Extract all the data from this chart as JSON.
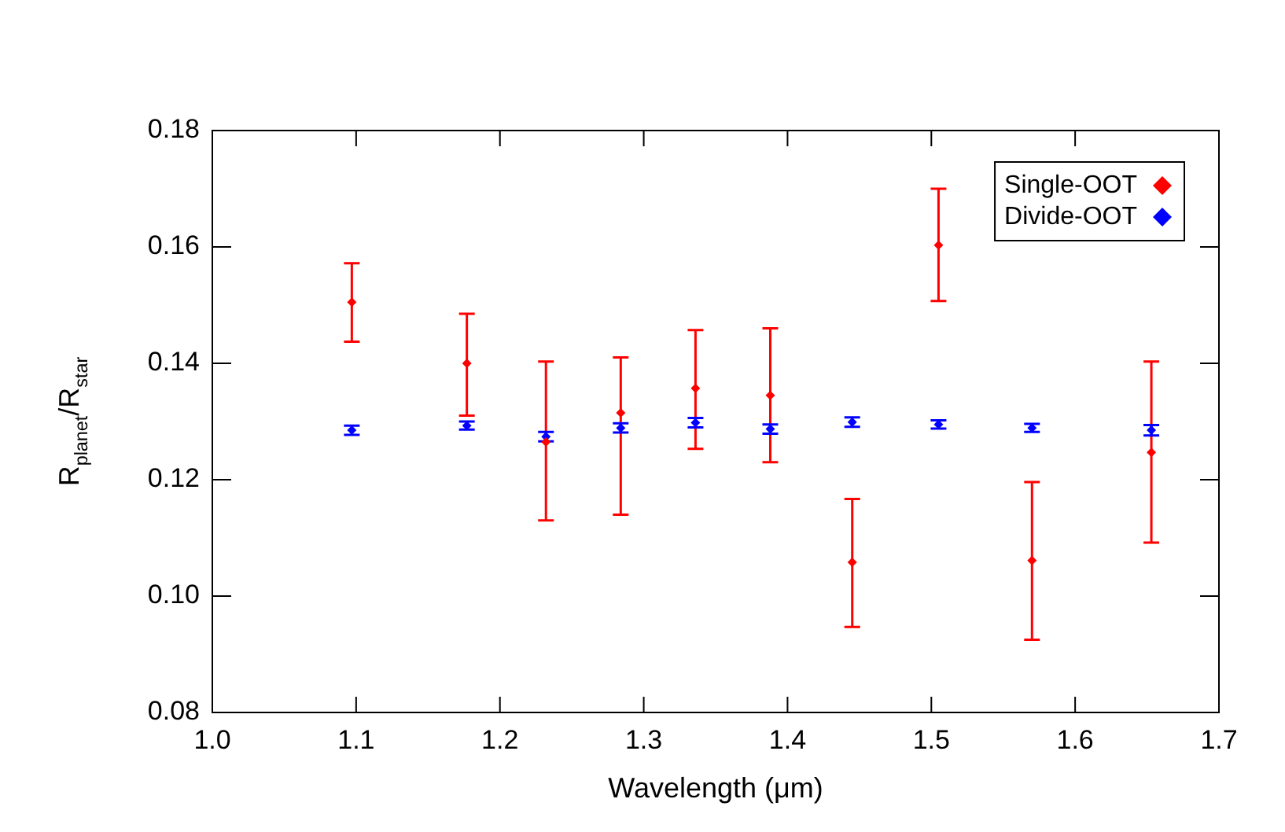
{
  "chart_data": {
    "type": "scatter",
    "xlabel": "Wavelength (μm)",
    "ylabel": "R$_{planet}$/R$_{star}$",
    "xlim": [
      1.0,
      1.7
    ],
    "xticks": [
      {
        "value": 1.0,
        "label": "1.0"
      },
      {
        "value": 1.1,
        "label": "1.1"
      },
      {
        "value": 1.2,
        "label": "1.2"
      },
      {
        "value": 1.3,
        "label": "1.3"
      },
      {
        "value": 1.4,
        "label": "1.4"
      },
      {
        "value": 1.5,
        "label": "1.5"
      },
      {
        "value": 1.6,
        "label": "1.6"
      },
      {
        "value": 1.7,
        "label": "1.7"
      }
    ],
    "ylim": [
      0.08,
      0.18
    ],
    "yticks": [
      {
        "value": 0.08,
        "label": "0.08"
      },
      {
        "value": 0.1,
        "label": "0.10"
      },
      {
        "value": 0.12,
        "label": "0.12"
      },
      {
        "value": 0.14,
        "label": "0.14"
      },
      {
        "value": 0.16,
        "label": "0.16"
      },
      {
        "value": 0.18,
        "label": "0.18"
      }
    ],
    "x": [
      1.097,
      1.177,
      1.232,
      1.284,
      1.336,
      1.388,
      1.445,
      1.505,
      1.57,
      1.653
    ],
    "marker": "diamond",
    "legend": "top right",
    "grid": false,
    "series": [
      {
        "name": "Single-OOT",
        "color": "#ff0000",
        "values": [
          0.1505,
          0.14,
          0.1265,
          0.1315,
          0.1357,
          0.1345,
          0.1058,
          0.1603,
          0.1061,
          0.1247
        ],
        "errors": [
          [
            0.1437,
            0.1572
          ],
          [
            0.131,
            0.1485
          ],
          [
            0.113,
            0.1403
          ],
          [
            0.114,
            0.141
          ],
          [
            0.1253,
            0.1457
          ],
          [
            0.123,
            0.146
          ],
          [
            0.0947,
            0.1167
          ],
          [
            0.1507,
            0.17
          ],
          [
            0.0925,
            0.1196
          ],
          [
            0.1092,
            0.1403
          ]
        ]
      },
      {
        "name": "Divide-OOT",
        "color": "#0000ff",
        "values": [
          0.1285,
          0.1293,
          0.1274,
          0.1289,
          0.1298,
          0.1287,
          0.1299,
          0.1295,
          0.1289,
          0.1285
        ],
        "errors": [
          0.0008,
          0.0007,
          0.0008,
          0.0008,
          0.0008,
          0.0008,
          0.0008,
          0.0007,
          0.0007,
          0.0009
        ]
      }
    ]
  }
}
